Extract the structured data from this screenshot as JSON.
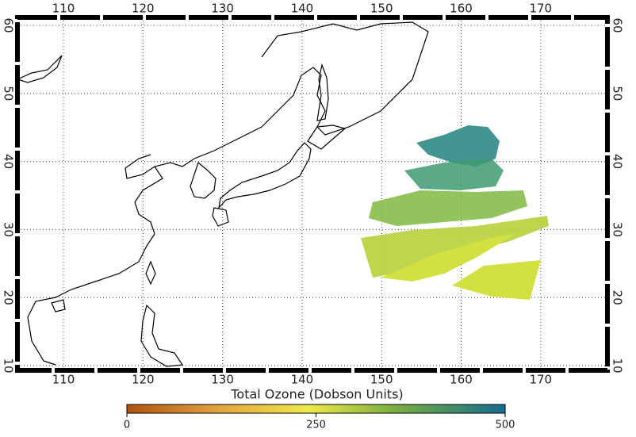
{
  "map": {
    "lon_labels": [
      110,
      120,
      130,
      140,
      150,
      160,
      170
    ],
    "lat_labels": [
      10,
      20,
      30,
      40,
      50,
      60
    ]
  },
  "colorbar": {
    "title": "Total Ozone (Dobson Units)",
    "labels": [
      0,
      250,
      500
    ]
  }
}
